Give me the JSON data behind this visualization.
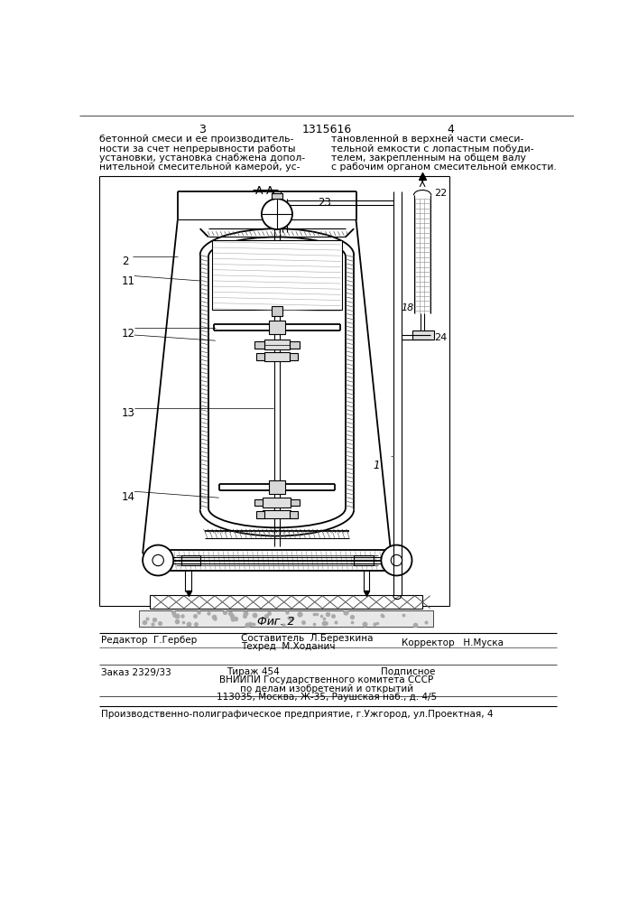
{
  "bg_color": "#ffffff",
  "line_color": "#000000",
  "page_num_left": "3",
  "page_num_center": "1315616",
  "page_num_right": "4",
  "text_left_col": "бетонной смеси и ее производитель-\nности за счет непрерывности работы\nустановки, установка снабжена допол-\nнительной смесительной камерой, ус-",
  "text_right_col": "тановленной в верхней части смеси-\nтельной емкости с лопастным побуди-\nтелем, закрепленным на общем валу\nс рабочим органом смесительной емкости.",
  "section_label": "А-А",
  "fig_label": "Фиг. 2",
  "label_2": "2",
  "label_11": "11",
  "label_12": "12",
  "label_13": "13",
  "label_14": "14",
  "label_18": "18",
  "label_23": "23",
  "label_22": "22",
  "label_24": "24",
  "label_1": "1",
  "footer_editor": "Редактор  Г.Гербер",
  "footer_composer": "Составитель  Л.Березкина",
  "footer_techred": "Техред  М.Ходанич",
  "footer_corrector": "Корректор   Н.Муска",
  "footer_order": "Заказ 2329/33",
  "footer_tirazh": "Тираж 454",
  "footer_podpisnoe": "Подписное",
  "footer_vniiipi": "ВНИИПИ Государственного комитета СССР",
  "footer_po_delam": "по делам изобретений и открытий",
  "footer_address": "113035, Москва, Ж-35, Раушская наб., д. 4/5",
  "footer_production": "Производственно-полиграфическое предприятие, г.Ужгород, ул.Проектная, 4"
}
